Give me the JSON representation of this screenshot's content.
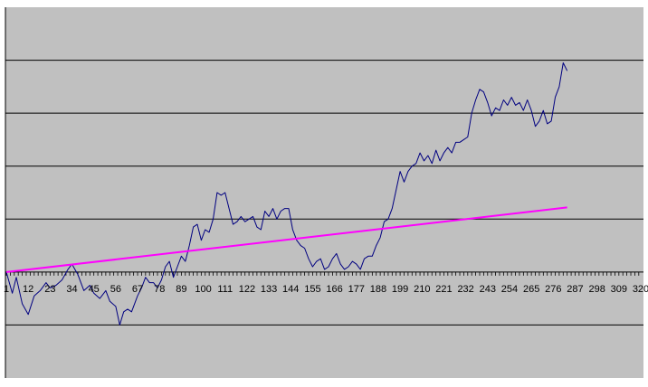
{
  "chart_data": {
    "type": "line",
    "title": "",
    "xlabel": "",
    "ylabel": "",
    "x_tick_labels": [
      "1",
      "12",
      "23",
      "34",
      "45",
      "56",
      "67",
      "78",
      "89",
      "100",
      "111",
      "122",
      "133",
      "144",
      "155",
      "166",
      "177",
      "188",
      "199",
      "210",
      "221",
      "232",
      "243",
      "254",
      "265",
      "276",
      "287",
      "298",
      "309",
      "320"
    ],
    "x_tick_values": [
      1,
      12,
      23,
      34,
      45,
      56,
      67,
      78,
      89,
      100,
      111,
      122,
      133,
      144,
      155,
      166,
      177,
      188,
      199,
      210,
      221,
      232,
      243,
      254,
      265,
      276,
      287,
      298,
      309,
      320
    ],
    "xlim": [
      1,
      320
    ],
    "ylim": [
      -2,
      5
    ],
    "y_gridlines": [
      -1,
      1,
      2,
      3,
      4
    ],
    "grid": true,
    "plot_background": "#c0c0c0",
    "series": [
      {
        "color": "#000080",
        "x": [
          1,
          4,
          6,
          9,
          12,
          15,
          18,
          21,
          23,
          26,
          29,
          32,
          34,
          37,
          40,
          43,
          45,
          48,
          51,
          53,
          56,
          58,
          60,
          62,
          64,
          67,
          69,
          71,
          73,
          75,
          77,
          79,
          81,
          83,
          85,
          87,
          89,
          91,
          93,
          95,
          97,
          99,
          101,
          103,
          105,
          107,
          109,
          111,
          113,
          115,
          117,
          119,
          121,
          123,
          125,
          127,
          129,
          131,
          133,
          135,
          137,
          139,
          141,
          143,
          145,
          147,
          149,
          151,
          153,
          155,
          157,
          159,
          161,
          163,
          165,
          167,
          169,
          171,
          173,
          175,
          177,
          179,
          181,
          183,
          185,
          187,
          189,
          191,
          193,
          195,
          197,
          199,
          201,
          203,
          205,
          207,
          209,
          211,
          213,
          215,
          217,
          219,
          221,
          223,
          225,
          227,
          229,
          231,
          233,
          235,
          237,
          239,
          241,
          243,
          245,
          247,
          249,
          251,
          253,
          255,
          257,
          259,
          261,
          263,
          265,
          267,
          269,
          271,
          273,
          275,
          277,
          279,
          281,
          283
        ],
        "values": [
          0.0,
          -0.4,
          -0.1,
          -0.6,
          -0.8,
          -0.45,
          -0.35,
          -0.2,
          -0.3,
          -0.25,
          -0.15,
          0.05,
          0.15,
          -0.05,
          -0.35,
          -0.25,
          -0.4,
          -0.5,
          -0.35,
          -0.55,
          -0.65,
          -1.0,
          -0.75,
          -0.7,
          -0.75,
          -0.45,
          -0.3,
          -0.1,
          -0.2,
          -0.2,
          -0.3,
          -0.15,
          0.1,
          0.2,
          -0.1,
          0.1,
          0.3,
          0.2,
          0.5,
          0.85,
          0.9,
          0.6,
          0.8,
          0.75,
          1.0,
          1.5,
          1.45,
          1.5,
          1.2,
          0.9,
          0.95,
          1.05,
          0.95,
          1.0,
          1.05,
          0.85,
          0.8,
          1.15,
          1.05,
          1.2,
          1.0,
          1.15,
          1.2,
          1.2,
          0.8,
          0.6,
          0.5,
          0.45,
          0.25,
          0.1,
          0.2,
          0.25,
          0.05,
          0.1,
          0.25,
          0.35,
          0.15,
          0.05,
          0.1,
          0.2,
          0.15,
          0.05,
          0.25,
          0.3,
          0.3,
          0.5,
          0.65,
          0.95,
          1.0,
          1.2,
          1.55,
          1.9,
          1.7,
          1.9,
          2.0,
          2.05,
          2.25,
          2.1,
          2.2,
          2.05,
          2.3,
          2.1,
          2.25,
          2.35,
          2.25,
          2.45,
          2.45,
          2.5,
          2.55,
          3.0,
          3.25,
          3.45,
          3.4,
          3.2,
          2.95,
          3.1,
          3.05,
          3.25,
          3.15,
          3.3,
          3.15,
          3.2,
          3.05,
          3.25,
          3.05,
          2.75,
          2.85,
          3.05,
          2.8,
          2.85,
          3.3,
          3.5,
          3.95,
          3.8
        ]
      },
      {
        "color": "#ff00ff",
        "x": [
          1,
          283
        ],
        "values": [
          0.0,
          1.22
        ]
      }
    ]
  }
}
